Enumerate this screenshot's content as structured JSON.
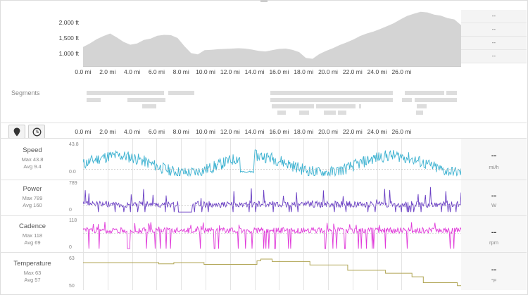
{
  "elevation": {
    "ticks": [
      "2,000 ft",
      "1,500 ft",
      "1,000 ft"
    ],
    "side_values": [
      "--",
      "--",
      "--",
      "--"
    ],
    "profile_ft": [
      1220,
      1330,
      1460,
      1560,
      1640,
      1520,
      1380,
      1290,
      1330,
      1440,
      1480,
      1570,
      1600,
      1590,
      1500,
      1250,
      1030,
      990,
      1120,
      1130,
      1150,
      1160,
      1170,
      1180,
      1170,
      1140,
      1100,
      1080,
      1120,
      1160,
      1170,
      1130,
      1060,
      880,
      850,
      1000,
      1100,
      1180,
      1280,
      1360,
      1450,
      1560,
      1640,
      1700,
      1780,
      1870,
      1960,
      2080,
      2190,
      2260,
      2320,
      2300,
      2230,
      2200,
      2120,
      2080,
      1900
    ]
  },
  "distance_axis": [
    "0.0 mi",
    "2.0 mi",
    "4.0 mi",
    "6.0 mi",
    "8.0 mi",
    "10.0 mi",
    "12.0 mi",
    "14.0 mi",
    "16.0 mi",
    "18.0 mi",
    "20.0 mi",
    "22.0 mi",
    "24.0 mi",
    "26.0 mi"
  ],
  "segments": {
    "title": "Segments"
  },
  "controls": {
    "location_icon": "map-pin-icon",
    "time_icon": "clock-icon"
  },
  "metrics": {
    "speed": {
      "name": "Speed",
      "max": "Max 43.8",
      "avg": "Avg 9.4",
      "scale_top": "43.8",
      "scale_bottom": "0.0",
      "value": "--",
      "unit": "mi/h",
      "color": "#3bb1d0"
    },
    "power": {
      "name": "Power",
      "max": "Max 789",
      "avg": "Avg 160",
      "scale_top": "789",
      "scale_bottom": "0",
      "value": "--",
      "unit": "W",
      "color": "#6a3fc4"
    },
    "cadence": {
      "name": "Cadence",
      "max": "Max 118",
      "avg": "Avg 69",
      "scale_top": "118",
      "scale_bottom": "0",
      "value": "--",
      "unit": "rpm",
      "color": "#e03ad9"
    },
    "temperature": {
      "name": "Temperature",
      "max": "Max 63",
      "avg": "Avg 57",
      "scale_top": "63",
      "scale_bottom": "50",
      "value": "--",
      "unit": "°F",
      "color": "#b0a554",
      "steps": [
        [
          0,
          60.6
        ],
        [
          20,
          60.6
        ],
        [
          20,
          60.2
        ],
        [
          24,
          60.2
        ],
        [
          24,
          60.6
        ],
        [
          32,
          60.6
        ],
        [
          32,
          60.0
        ],
        [
          46,
          60.0
        ],
        [
          46,
          61.2
        ],
        [
          47,
          61.2
        ],
        [
          47,
          61.8
        ],
        [
          50,
          61.8
        ],
        [
          50,
          61.0
        ],
        [
          60,
          61.0
        ],
        [
          60,
          59.8
        ],
        [
          70,
          59.8
        ],
        [
          70,
          58.0
        ],
        [
          80,
          58.0
        ],
        [
          80,
          57.0
        ],
        [
          87,
          57.0
        ],
        [
          87,
          55.8
        ],
        [
          90,
          55.8
        ],
        [
          90,
          53.8
        ],
        [
          99,
          53.8
        ],
        [
          99,
          52.8
        ],
        [
          100,
          52.8
        ]
      ]
    }
  }
}
